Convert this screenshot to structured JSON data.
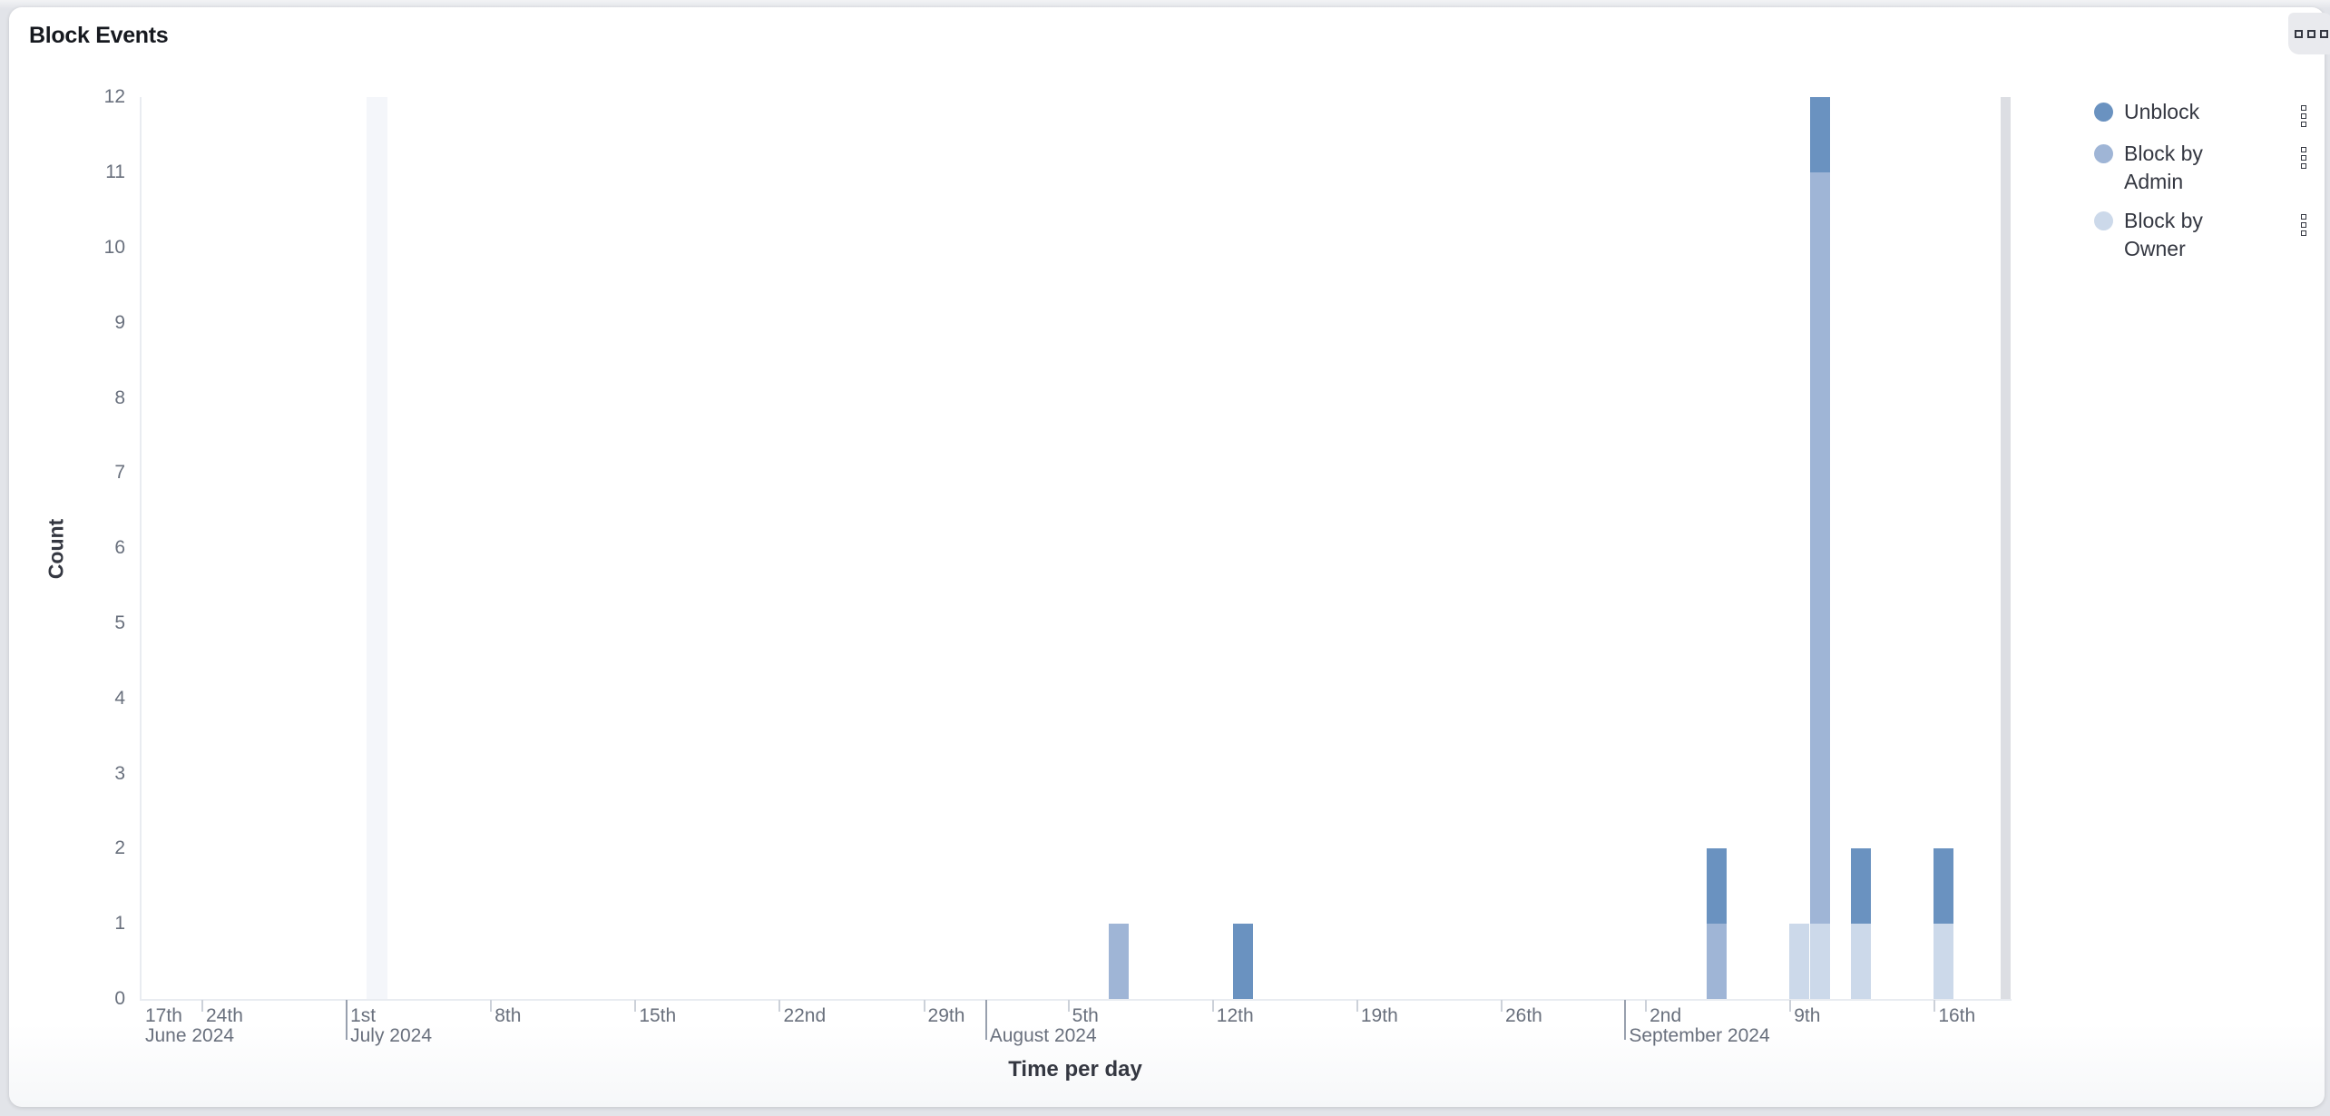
{
  "panel": {
    "title": "Block Events",
    "options_button": {
      "icon": "boxes-horizontal-icon"
    }
  },
  "legend": {
    "position": "right",
    "items": [
      {
        "label": "Unblock",
        "color": "#6a92c0",
        "action_icon": "boxes-vertical-icon"
      },
      {
        "label": "Block by Admin",
        "color": "#9fb5d6",
        "action_icon": "boxes-vertical-icon"
      },
      {
        "label": "Block by Owner",
        "color": "#ccd9ea",
        "action_icon": "boxes-vertical-icon"
      }
    ]
  },
  "chart_data": {
    "type": "bar",
    "stacked": true,
    "title": "Block Events",
    "xlabel": "Time per day",
    "ylabel": "Count",
    "ylim": [
      0,
      12
    ],
    "grid": false,
    "legend_position": "right",
    "y_ticks": [
      0,
      1,
      2,
      3,
      4,
      5,
      6,
      7,
      8,
      9,
      10,
      11,
      12
    ],
    "x_axis_range": [
      "2024-06-21",
      "2024-09-19"
    ],
    "x_ticks": [
      {
        "date": "2024-06-17",
        "day": "17th",
        "month": "June 2024",
        "tick": "none",
        "clamp": true
      },
      {
        "date": "2024-06-24",
        "day": "24th",
        "tick": "short"
      },
      {
        "date": "2024-07-01",
        "day": "1st",
        "month": "July 2024",
        "tick": "tall"
      },
      {
        "date": "2024-07-08",
        "day": "8th",
        "tick": "short"
      },
      {
        "date": "2024-07-15",
        "day": "15th",
        "tick": "short"
      },
      {
        "date": "2024-07-22",
        "day": "22nd",
        "tick": "short"
      },
      {
        "date": "2024-07-29",
        "day": "29th",
        "tick": "short"
      },
      {
        "date": "2024-08-01",
        "month": "August 2024",
        "tick": "tall"
      },
      {
        "date": "2024-08-05",
        "day": "5th",
        "tick": "short"
      },
      {
        "date": "2024-08-12",
        "day": "12th",
        "tick": "short"
      },
      {
        "date": "2024-08-19",
        "day": "19th",
        "tick": "short"
      },
      {
        "date": "2024-08-26",
        "day": "26th",
        "tick": "short"
      },
      {
        "date": "2024-09-01",
        "month": "September 2024",
        "tick": "tall"
      },
      {
        "date": "2024-09-02",
        "day": "2nd",
        "tick": "short"
      },
      {
        "date": "2024-09-09",
        "day": "9th",
        "tick": "short"
      },
      {
        "date": "2024-09-16",
        "day": "16th",
        "tick": "short"
      }
    ],
    "stack_order": [
      "Block by Owner",
      "Block by Admin",
      "Unblock"
    ],
    "series": [
      {
        "name": "Unblock",
        "color": "#6a92c0",
        "data": {
          "2024-08-13": 1,
          "2024-09-05": 1,
          "2024-09-10": 1,
          "2024-09-12": 1,
          "2024-09-16": 1
        }
      },
      {
        "name": "Block by Admin",
        "color": "#9fb5d6",
        "data": {
          "2024-08-07": 1,
          "2024-09-05": 1,
          "2024-09-10": 10
        }
      },
      {
        "name": "Block by Owner",
        "color": "#ccd9ea",
        "data": {
          "2024-09-09": 1,
          "2024-09-10": 1,
          "2024-09-12": 1,
          "2024-09-16": 1
        }
      }
    ],
    "highlight_bands": [
      {
        "start": "2024-07-02",
        "days": 1,
        "color": "#f4f6fa",
        "name": "empty-day-band"
      },
      {
        "start": "2024-09-19",
        "days": 0.5,
        "color": "#dcdee3",
        "name": "partial-bucket-band",
        "align": "end"
      }
    ]
  }
}
